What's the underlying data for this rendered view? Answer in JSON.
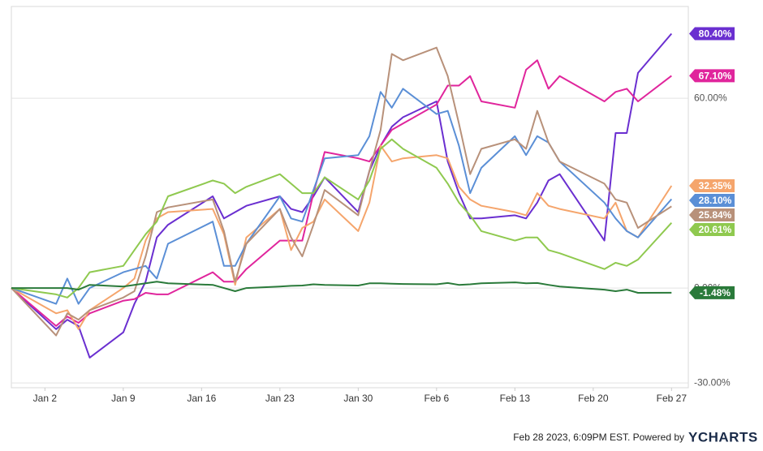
{
  "chart_data": {
    "type": "line",
    "x": [
      -3,
      1,
      2,
      3,
      4,
      7,
      8,
      9,
      10,
      11,
      15,
      16,
      17,
      18,
      21,
      22,
      23,
      24,
      25,
      28,
      29,
      30,
      31,
      32,
      35,
      36,
      37,
      38,
      39,
      42,
      43,
      44,
      45,
      46,
      50,
      51,
      52,
      53,
      56
    ],
    "xlim": [
      -3,
      57.5
    ],
    "xticks": [
      {
        "value": 0,
        "label": "Jan 2"
      },
      {
        "value": 7,
        "label": "Jan 9"
      },
      {
        "value": 14,
        "label": "Jan 16"
      },
      {
        "value": 21,
        "label": "Jan 23"
      },
      {
        "value": 28,
        "label": "Jan 30"
      },
      {
        "value": 35,
        "label": "Feb 6"
      },
      {
        "value": 42,
        "label": "Feb 13"
      },
      {
        "value": 49,
        "label": "Feb 20"
      },
      {
        "value": 56,
        "label": "Feb 27"
      }
    ],
    "ylim": [
      -31.5,
      89
    ],
    "yticks": [
      {
        "value": 60,
        "label": "60.00%"
      },
      {
        "value": 0,
        "label": "0.00%"
      },
      {
        "value": -30,
        "label": "-30.00%"
      }
    ],
    "grid": true,
    "series": [
      {
        "color": "#6a2fd0",
        "last_label": "80.40%",
        "values": [
          0,
          -13,
          -10,
          -12,
          -22,
          -14,
          -5,
          2,
          16,
          20,
          29,
          22,
          24,
          26,
          29,
          25,
          24,
          29,
          35,
          24,
          37,
          45,
          51,
          54,
          59,
          40,
          30,
          22,
          22,
          23,
          22,
          27,
          34,
          36,
          15,
          49,
          49,
          68,
          80.4
        ]
      },
      {
        "color": "#e0259c",
        "last_label": "67.10%",
        "values": [
          0,
          -12,
          -9,
          -11,
          -8,
          -4,
          -3.5,
          -1.5,
          -2,
          -2,
          5,
          2,
          2,
          6,
          15,
          15,
          15,
          30,
          43,
          41,
          40,
          45,
          50,
          52,
          58,
          64,
          64,
          67,
          59,
          57,
          69,
          72,
          63,
          67,
          59,
          62,
          63,
          59,
          67.1
        ]
      },
      {
        "color": "#f5a56c",
        "last_label": "32.35%",
        "values": [
          0,
          -8,
          -7,
          -13,
          -7,
          0,
          3,
          15,
          22,
          24,
          25,
          17,
          1,
          16,
          25,
          12,
          19,
          21,
          28,
          18,
          27,
          45,
          40,
          41,
          42,
          41,
          32,
          28,
          26,
          24,
          23,
          30,
          26,
          25,
          22,
          27,
          18,
          16,
          32.35
        ]
      },
      {
        "color": "#5b8fd6",
        "last_label": "28.10%",
        "values": [
          0,
          -5,
          3,
          -5,
          0,
          5,
          6,
          7,
          3,
          14,
          21,
          7,
          7,
          14,
          29,
          22,
          21,
          31,
          41,
          42,
          48,
          62,
          57,
          63,
          55,
          56,
          45,
          30,
          38,
          48,
          42,
          48,
          46,
          40,
          27,
          22,
          18,
          16,
          28.1
        ]
      },
      {
        "color": "#b8917a",
        "last_label": "25.84%",
        "values": [
          0,
          -15,
          -8,
          -10,
          -7,
          -3,
          -1,
          10,
          24,
          25.5,
          28,
          18,
          2,
          14,
          25,
          16,
          10,
          20,
          31,
          23,
          37,
          50,
          74,
          72,
          76,
          67,
          52,
          36,
          44,
          47,
          44,
          56,
          46,
          40,
          33,
          28,
          27,
          19,
          25.84
        ]
      },
      {
        "color": "#8fc94f",
        "last_label": "20.61%",
        "values": [
          0,
          -2,
          -3,
          0,
          5,
          7,
          12,
          17,
          21,
          29,
          34,
          33,
          30,
          32,
          36,
          33,
          30,
          30,
          35,
          28,
          34,
          44,
          47,
          44,
          38,
          33,
          27,
          23,
          18,
          15,
          16,
          16,
          12,
          11,
          6,
          8,
          7,
          9,
          20.61
        ]
      },
      {
        "color": "#2a7a3a",
        "last_label": "-1.48%",
        "values": [
          0,
          0,
          0,
          -0.5,
          1,
          0.5,
          1,
          1.5,
          2,
          1.5,
          1,
          0,
          -1,
          0,
          0.5,
          0.7,
          0.8,
          1.2,
          1,
          0.8,
          1.5,
          1.5,
          1.4,
          1.3,
          1.2,
          1.6,
          1,
          1.2,
          1.5,
          1.8,
          1.5,
          1.6,
          1,
          0.5,
          -0.5,
          -1,
          -0.5,
          -1.5,
          -1.48
        ]
      }
    ]
  },
  "footer": "Feb 28 2023, 6:09PM EST. Powered by",
  "brand": "YCHARTS"
}
